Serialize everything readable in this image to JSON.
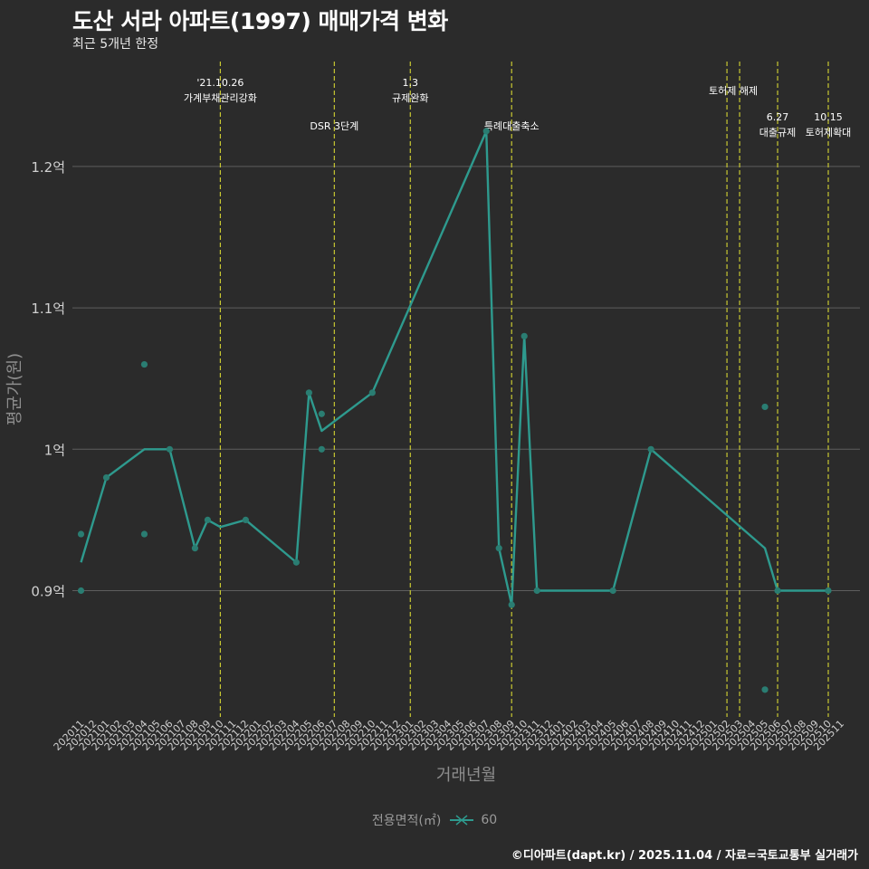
{
  "header": {
    "title": "도산 서라 아파트(1997) 매매가격 변화",
    "subtitle": "최근 5개년 한정"
  },
  "caption": "©디아파트(dapt.kr) / 2025.11.04 / 자료=국토교통부 실거래가",
  "legend": {
    "title": "전용면적(㎡)",
    "label": "60"
  },
  "colors": {
    "background": "#2b2b2b",
    "grid": "#5e5e5e",
    "line": "#2e9a8e",
    "point": "#2a7d72",
    "event_line": "#c8c832",
    "axis_text": "#d0d0d0",
    "axis_title": "#8e8e8e"
  },
  "chart_data": {
    "type": "line",
    "title": "도산 서라 아파트(1997) 매매가격 변화",
    "xlabel": "거래년월",
    "ylabel": "평균가(원)",
    "ylim": [
      0.8,
      1.26
    ],
    "yticks": [
      {
        "value": 0.9,
        "label": "0.9억"
      },
      {
        "value": 1.0,
        "label": "1억"
      },
      {
        "value": 1.1,
        "label": "1.1억"
      },
      {
        "value": 1.2,
        "label": "1.2억"
      }
    ],
    "categories": [
      "202011",
      "202012",
      "202101",
      "202102",
      "202103",
      "202104",
      "202105",
      "202106",
      "202107",
      "202108",
      "202109",
      "202110",
      "202111",
      "202112",
      "202201",
      "202202",
      "202203",
      "202204",
      "202205",
      "202206",
      "202207",
      "202208",
      "202209",
      "202210",
      "202211",
      "202212",
      "202301",
      "202302",
      "202303",
      "202304",
      "202305",
      "202306",
      "202307",
      "202308",
      "202309",
      "202310",
      "202311",
      "202312",
      "202401",
      "202402",
      "202403",
      "202404",
      "202405",
      "202406",
      "202407",
      "202408",
      "202409",
      "202410",
      "202411",
      "202412",
      "202501",
      "202502",
      "202503",
      "202504",
      "202505",
      "202506",
      "202507",
      "202508",
      "202509",
      "202510",
      "202511"
    ],
    "series": [
      {
        "name": "60",
        "line": [
          [
            "202011",
            0.92
          ],
          [
            "202101",
            0.98
          ],
          [
            "202104",
            1.0
          ],
          [
            "202106",
            1.0
          ],
          [
            "202108",
            0.93
          ],
          [
            "202109",
            0.95
          ],
          [
            "202110",
            0.945
          ],
          [
            "202112",
            0.95
          ],
          [
            "202204",
            0.92
          ],
          [
            "202205",
            1.04
          ],
          [
            "202206",
            1.013
          ],
          [
            "202210",
            1.04
          ],
          [
            "202307",
            1.225
          ],
          [
            "202308",
            0.93
          ],
          [
            "202309",
            0.89
          ],
          [
            "202310",
            1.08
          ],
          [
            "202311",
            0.9
          ],
          [
            "202405",
            0.9
          ],
          [
            "202408",
            1.0
          ],
          [
            "202505",
            0.93
          ],
          [
            "202506",
            0.9
          ],
          [
            "202510",
            0.9
          ]
        ],
        "points": [
          [
            "202011",
            0.94
          ],
          [
            "202011",
            0.9
          ],
          [
            "202101",
            0.98
          ],
          [
            "202104",
            1.06
          ],
          [
            "202104",
            0.94
          ],
          [
            "202106",
            1.0
          ],
          [
            "202108",
            0.93
          ],
          [
            "202109",
            0.95
          ],
          [
            "202112",
            0.95
          ],
          [
            "202204",
            0.92
          ],
          [
            "202205",
            1.04
          ],
          [
            "202206",
            1.025
          ],
          [
            "202206",
            1.0
          ],
          [
            "202210",
            1.04
          ],
          [
            "202307",
            1.225
          ],
          [
            "202308",
            0.93
          ],
          [
            "202309",
            0.89
          ],
          [
            "202310",
            1.08
          ],
          [
            "202311",
            0.9
          ],
          [
            "202405",
            0.9
          ],
          [
            "202408",
            1.0
          ],
          [
            "202505",
            1.03
          ],
          [
            "202505",
            0.83
          ],
          [
            "202506",
            0.9
          ],
          [
            "202510",
            0.9
          ]
        ]
      }
    ],
    "events": [
      {
        "x": "202110",
        "lines": [
          "'21.10.26",
          "가계부채관리강화"
        ],
        "row": 1
      },
      {
        "x": "202207",
        "lines": [
          "DSR 3단계"
        ],
        "row": 2
      },
      {
        "x": "202301",
        "lines": [
          "1.3",
          "규제완화"
        ],
        "row": 1
      },
      {
        "x": "202309",
        "lines": [
          "특례대출축소"
        ],
        "row": 2
      },
      {
        "x": "202502",
        "lines": [],
        "row": 1
      },
      {
        "x": "202503",
        "lines": [
          "토허제 해제"
        ],
        "row": 1,
        "label_x": "2025025"
      },
      {
        "x": "202506",
        "lines": [
          "6.27",
          "대출규제"
        ],
        "row": 2
      },
      {
        "x": "202510",
        "lines": [
          "10.15",
          "토허제확대"
        ],
        "row": 2
      }
    ]
  }
}
